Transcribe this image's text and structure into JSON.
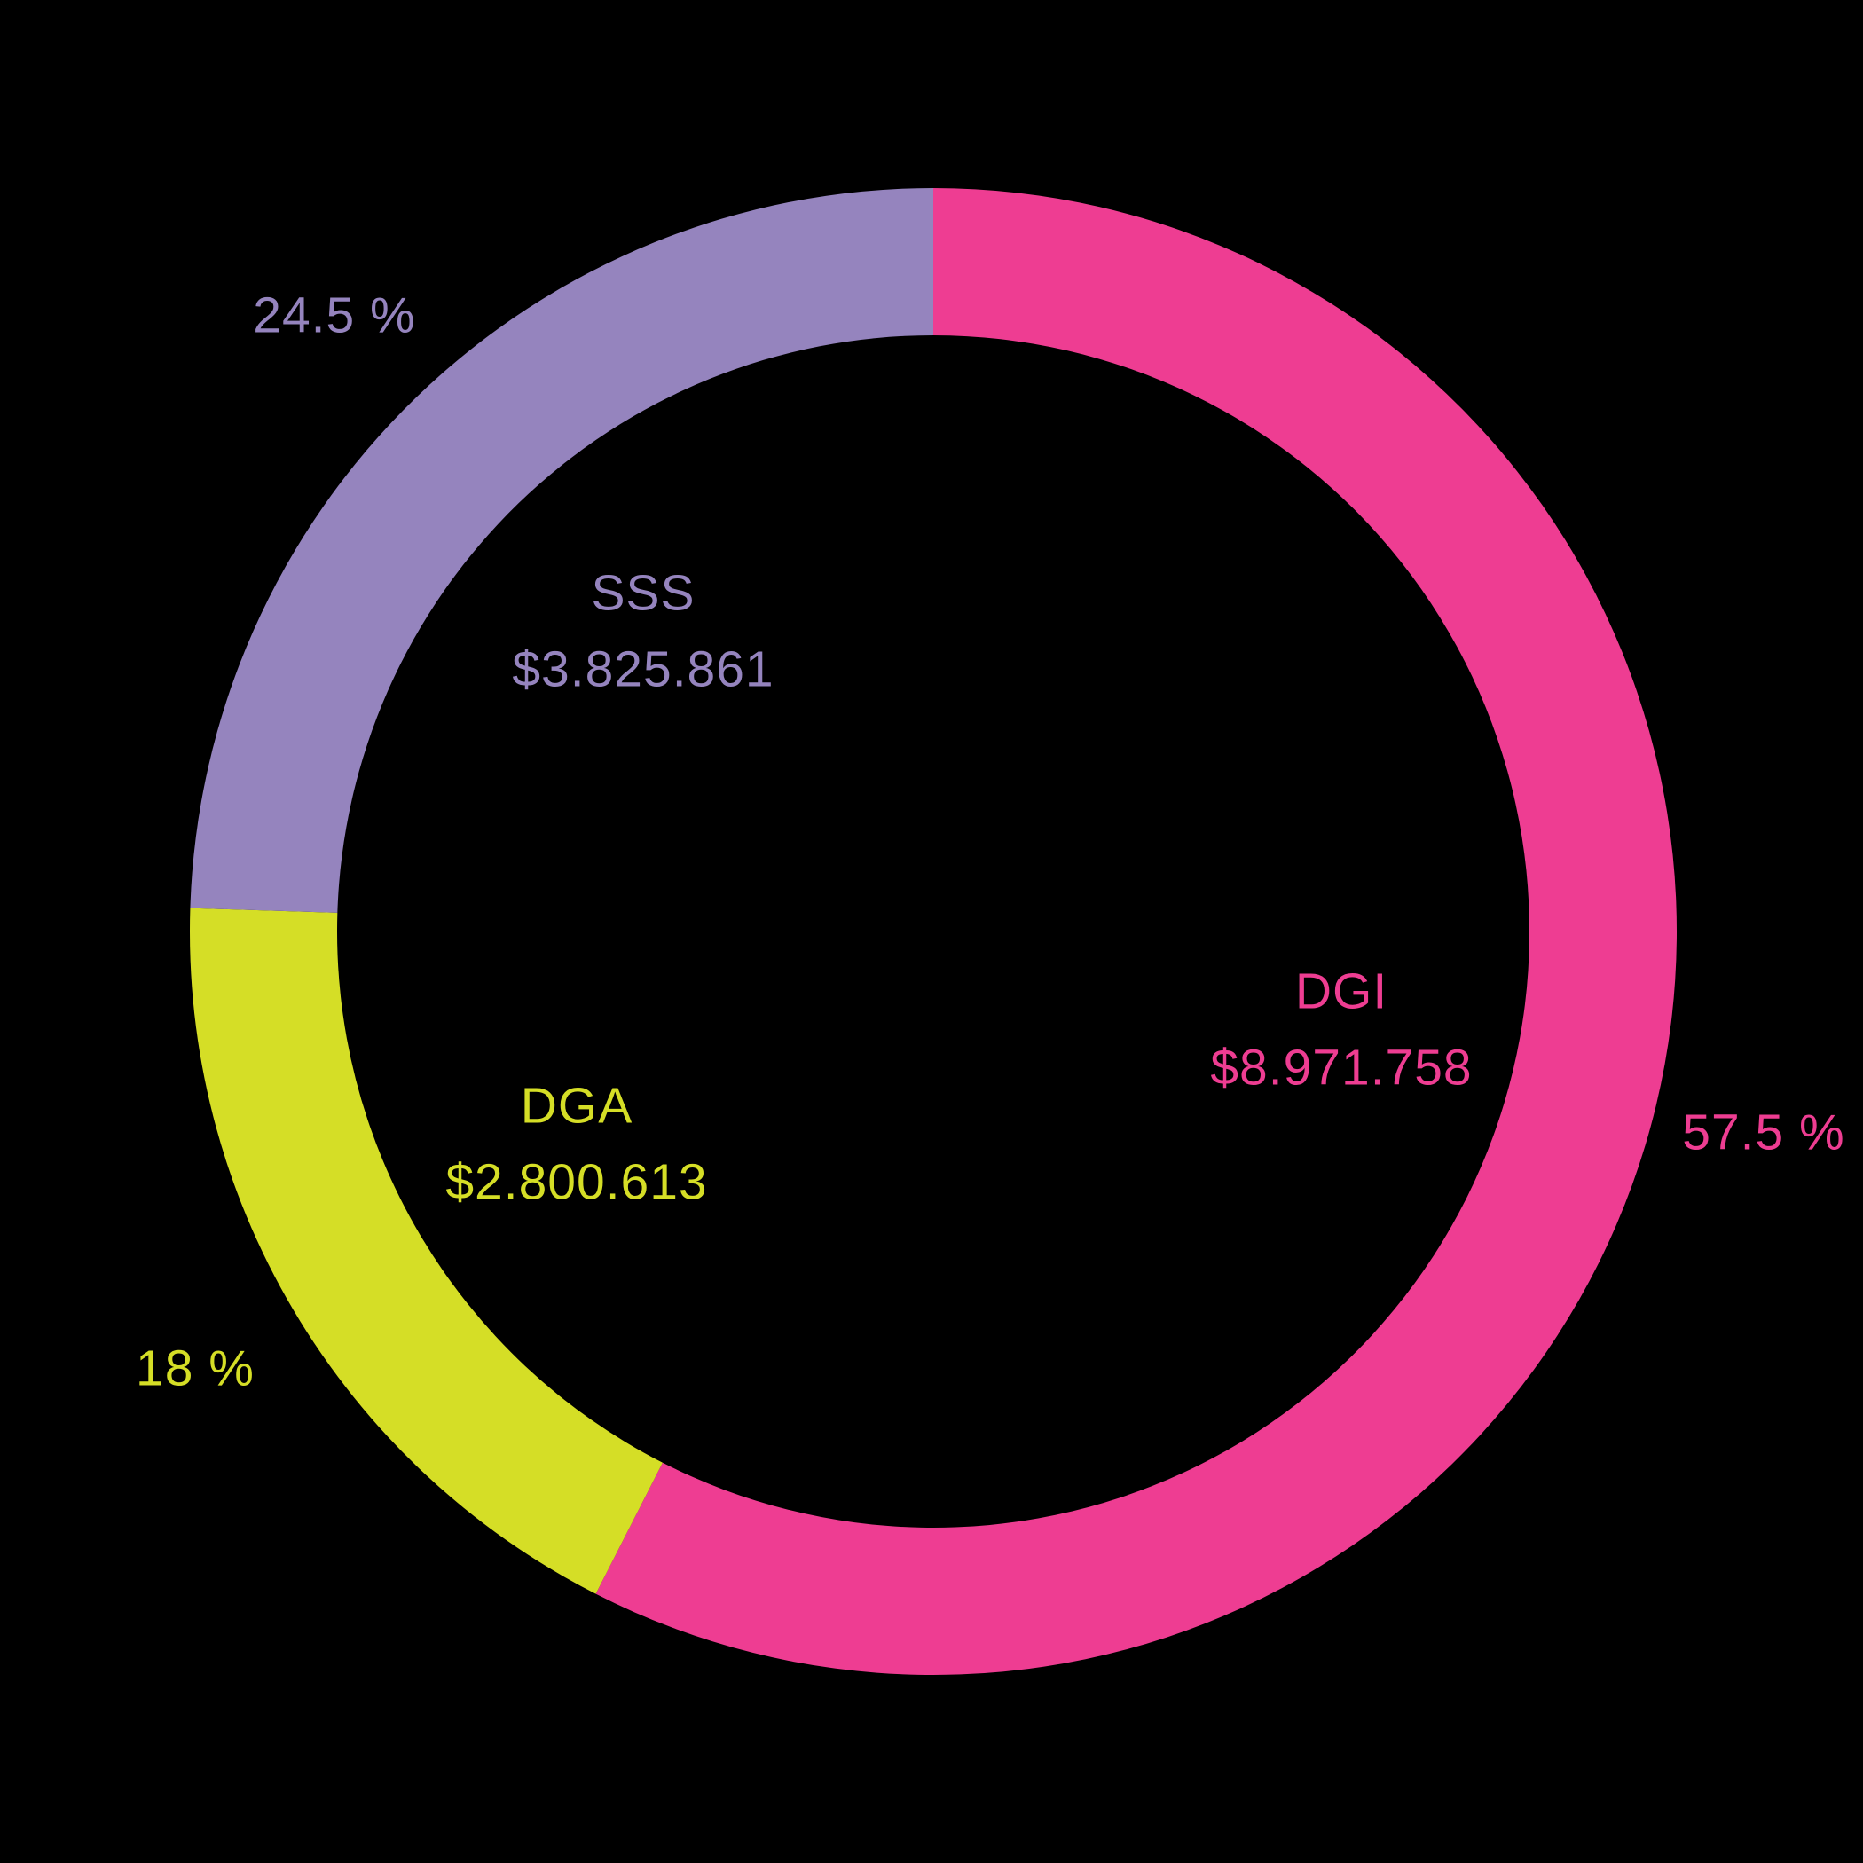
{
  "chart_data": {
    "type": "pie",
    "subtype": "donut",
    "title": "",
    "background": "#000000",
    "legend": "none",
    "direction": "clockwise",
    "start_angle_deg": 0,
    "slices": [
      {
        "label": "DGI",
        "value": 8971758,
        "value_label": "$8.971.758",
        "percent": 57.5,
        "percent_label": "57.5 %",
        "color": "#EE3D92"
      },
      {
        "label": "DGA",
        "value": 2800613,
        "value_label": "$2.800.613",
        "percent": 18,
        "percent_label": "18 %",
        "color": "#D5DE26"
      },
      {
        "label": "SSS",
        "value": 3825861,
        "value_label": "$3.825.861",
        "percent": 24.5,
        "percent_label": "24.5 %",
        "color": "#9584BE"
      }
    ]
  }
}
